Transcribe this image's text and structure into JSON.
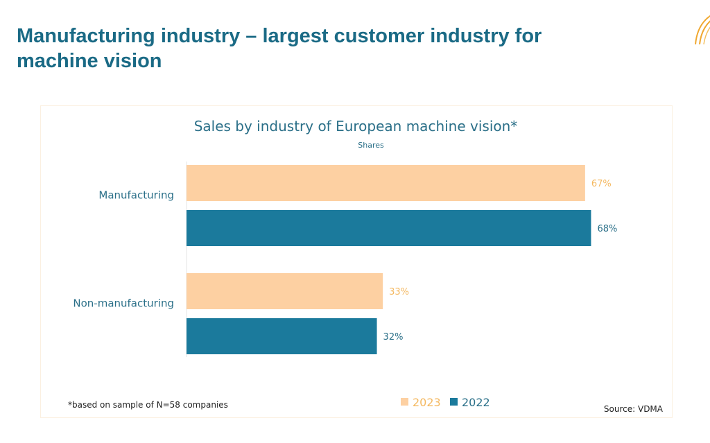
{
  "slide": {
    "title": "Manufacturing industry – largest customer industry for machine vision",
    "title_color": "#1a6a85",
    "logo_icon": "sunburst-arcs-logo"
  },
  "chart_data": {
    "type": "bar",
    "orientation": "horizontal",
    "title": "Sales by industry of European machine vision*",
    "subtitle": "Shares",
    "categories": [
      "Manufacturing",
      "Non-manufacturing"
    ],
    "series": [
      {
        "name": "2023",
        "values": [
          67,
          33
        ],
        "color": "#fdd0a2",
        "label_color": "#f4b860"
      },
      {
        "name": "2022",
        "values": [
          68,
          32
        ],
        "color": "#1b7a9c",
        "label_color": "#2a6f88"
      }
    ],
    "value_suffix": "%",
    "xlim": [
      0,
      100
    ],
    "grid": false,
    "legend": {
      "position": "bottom-center",
      "entries": [
        "2023",
        "2022"
      ]
    },
    "footnote": "*based on sample of N=58 companies",
    "source": "Source: VDMA"
  }
}
